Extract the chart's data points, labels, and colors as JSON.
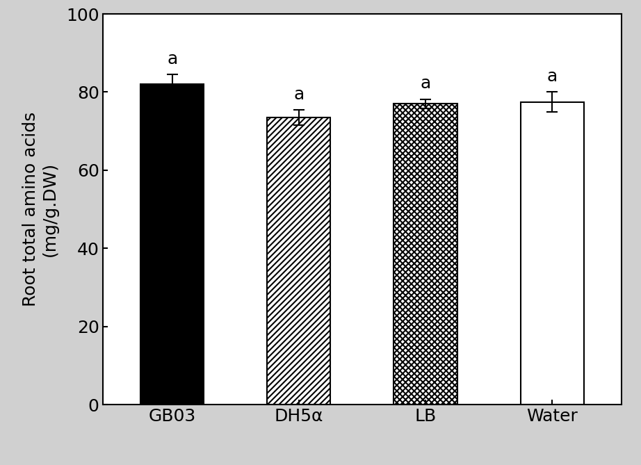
{
  "categories": [
    "GB03",
    "DH5α",
    "LB",
    "Water"
  ],
  "values": [
    82.0,
    73.5,
    77.0,
    77.5
  ],
  "errors": [
    2.5,
    2.0,
    1.2,
    2.5
  ],
  "sig_labels": [
    "a",
    "a",
    "a",
    "a"
  ],
  "ylabel_line1": "Root total amino acids",
  "ylabel_line2": "(mg/g.DW)",
  "ylim": [
    0,
    100
  ],
  "yticks": [
    0,
    20,
    40,
    60,
    80,
    100
  ],
  "bar_facecolors": [
    "black",
    "white",
    "white",
    "white"
  ],
  "bar_edgecolor": "black",
  "bar_width": 0.5,
  "background_color": "#d0d0d0",
  "plot_bg_color": "white",
  "sig_fontsize": 18,
  "tick_fontsize": 18,
  "label_fontsize": 18,
  "hatch_patterns": [
    null,
    "////",
    "////\\\\\\\\",
    null
  ]
}
